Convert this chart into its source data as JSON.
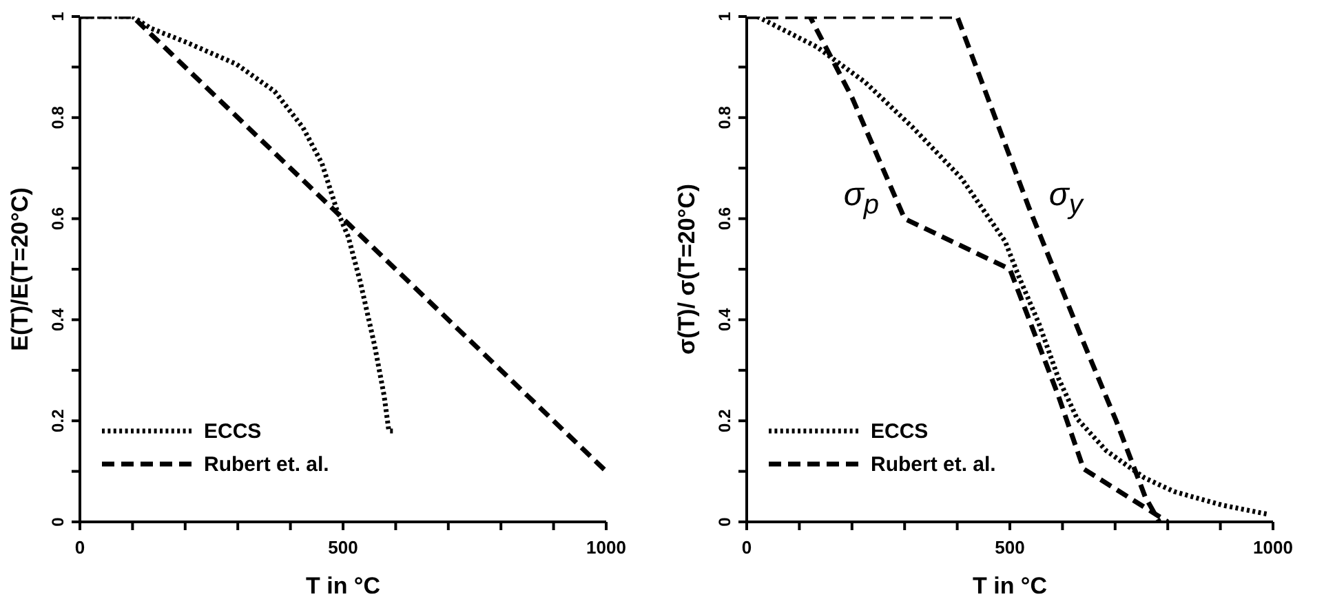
{
  "chart_data": [
    {
      "type": "line",
      "xlabel": "T in °C",
      "ylabel": "E(T)/E(T=20°C)",
      "xlim": [
        0,
        1000
      ],
      "ylim": [
        0,
        1
      ],
      "xticks": [
        0,
        {
          "value": 100,
          "label": null
        },
        {
          "value": 200,
          "label": null
        },
        {
          "value": 300,
          "label": null
        },
        {
          "value": 400,
          "label": null
        },
        500,
        {
          "value": 600,
          "label": null
        },
        {
          "value": 700,
          "label": null
        },
        {
          "value": 800,
          "label": null
        },
        {
          "value": 900,
          "label": null
        },
        1000
      ],
      "yticks": [
        0,
        {
          "value": 0.1,
          "label": null
        },
        0.2,
        {
          "value": 0.3,
          "label": null
        },
        0.4,
        {
          "value": 0.5,
          "label": null
        },
        0.6,
        {
          "value": 0.7,
          "label": null
        },
        0.8,
        {
          "value": 0.9,
          "label": null
        },
        1
      ],
      "legend": "bottom left",
      "series": [
        {
          "name": "ECCS",
          "color": "#000000",
          "line_style": "dotted",
          "x": [
            0,
            100,
            134,
            200,
            297,
            370,
            424,
            460,
            488,
            510,
            533,
            560,
            578,
            587,
            600
          ],
          "values": [
            1,
            1,
            0.977,
            0.95,
            0.906,
            0.852,
            0.78,
            0.709,
            0.618,
            0.564,
            0.474,
            0.349,
            0.25,
            0.18,
            0.18
          ]
        },
        {
          "name": "Rubert et. al.",
          "color": "#000000",
          "line_style": "dashed",
          "x": [
            0,
            100,
            500,
            1000
          ],
          "values": [
            1,
            1,
            0.6,
            0.1
          ]
        }
      ]
    },
    {
      "type": "line",
      "xlabel": "T in °C",
      "ylabel": "σ(T)/ σ(T=20°C)",
      "xlim": [
        0,
        1000
      ],
      "ylim": [
        0,
        1
      ],
      "xticks": [
        0,
        {
          "value": 100,
          "label": null
        },
        {
          "value": 200,
          "label": null
        },
        {
          "value": 300,
          "label": null
        },
        {
          "value": 400,
          "label": null
        },
        500,
        {
          "value": 600,
          "label": null
        },
        {
          "value": 700,
          "label": null
        },
        {
          "value": 800,
          "label": null
        },
        {
          "value": 900,
          "label": null
        },
        1000
      ],
      "yticks": [
        0,
        {
          "value": 0.1,
          "label": null
        },
        0.2,
        {
          "value": 0.3,
          "label": null
        },
        0.4,
        {
          "value": 0.5,
          "label": null
        },
        0.6,
        {
          "value": 0.7,
          "label": null
        },
        0.8,
        {
          "value": 0.9,
          "label": null
        },
        1
      ],
      "legend": "bottom left",
      "annotations": [
        "σ$_{p}$",
        "σ$_{y}$"
      ],
      "series": [
        {
          "name": "ECCS",
          "color": "#000000",
          "line_style": "dotted",
          "x": [
            20,
            133,
            225,
            316,
            408,
            491,
            518,
            555,
            592,
            628,
            683,
            756,
            812,
            904,
            991
          ],
          "values": [
            1,
            0.94,
            0.87,
            0.78,
            0.68,
            0.555,
            0.483,
            0.393,
            0.285,
            0.204,
            0.141,
            0.087,
            0.06,
            0.033,
            0.015
          ]
        },
        {
          "name": "Rubert et. al.",
          "color": "#000000",
          "line_style": "dashed",
          "x": [
            0,
            120,
            200,
            300,
            500,
            592,
            640,
            800
          ],
          "values": [
            1,
            1,
            0.84,
            0.6,
            0.5,
            0.25,
            0.105,
            0
          ]
        },
        {
          "color": "#000000",
          "line_style": "dashed",
          "x": [
            0,
            400,
            537,
            638,
            702,
            757,
            784
          ],
          "values": [
            1,
            1,
            0.62,
            0.36,
            0.2,
            0.05,
            0
          ]
        }
      ]
    }
  ]
}
